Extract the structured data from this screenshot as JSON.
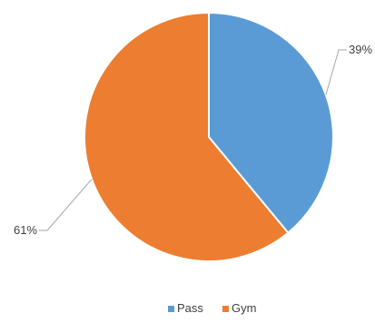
{
  "chart_data": {
    "type": "pie",
    "title": "",
    "slices": [
      {
        "name": "Pass",
        "value": 39,
        "label": "39%",
        "color": "#5b9bd5"
      },
      {
        "name": "Gym",
        "value": 61,
        "label": "61%",
        "color": "#ed7d31"
      }
    ],
    "start_angle_deg": 0,
    "direction": "clockwise",
    "legend_position": "bottom",
    "data_labels": "outside with leader lines"
  }
}
